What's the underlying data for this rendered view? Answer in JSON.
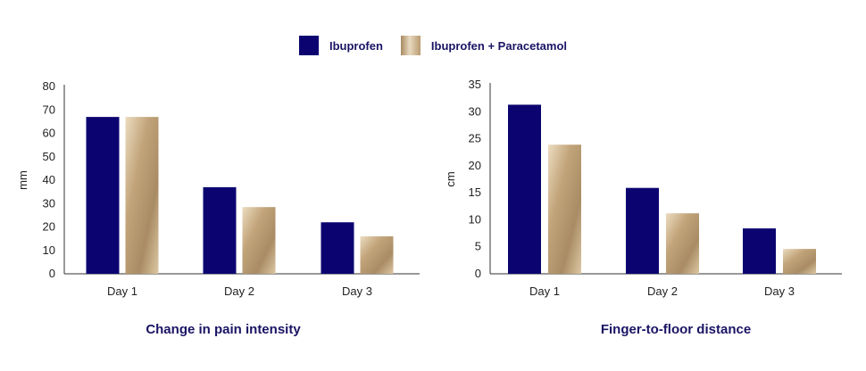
{
  "legend": [
    {
      "label": "Ibuprofen",
      "color": "#0b0470"
    },
    {
      "label": "Ibuprofen + Paracetamol",
      "color": "#b89a70"
    }
  ],
  "chart_data": [
    {
      "type": "bar",
      "title": "Change in pain intensity",
      "xlabel": "",
      "ylabel": "mm",
      "categories": [
        "Day 1",
        "Day 2",
        "Day 3"
      ],
      "ylim": [
        0,
        80
      ],
      "yticks": [
        0,
        10,
        20,
        30,
        40,
        50,
        60,
        70,
        80
      ],
      "series": [
        {
          "name": "Ibuprofen",
          "values": [
            67,
            37,
            22
          ]
        },
        {
          "name": "Ibuprofen + Paracetamol",
          "values": [
            67,
            28.5,
            16
          ]
        }
      ]
    },
    {
      "type": "bar",
      "title": "Finger-to-floor distance",
      "xlabel": "",
      "ylabel": "cm",
      "categories": [
        "Day 1",
        "Day 2",
        "Day 3"
      ],
      "ylim": [
        0,
        35
      ],
      "yticks": [
        0,
        5,
        10,
        15,
        20,
        25,
        30,
        35
      ],
      "series": [
        {
          "name": "Ibuprofen",
          "values": [
            31.3,
            15.9,
            8.4
          ]
        },
        {
          "name": "Ibuprofen + Paracetamol",
          "values": [
            23.9,
            11.2,
            4.6
          ]
        }
      ]
    }
  ]
}
